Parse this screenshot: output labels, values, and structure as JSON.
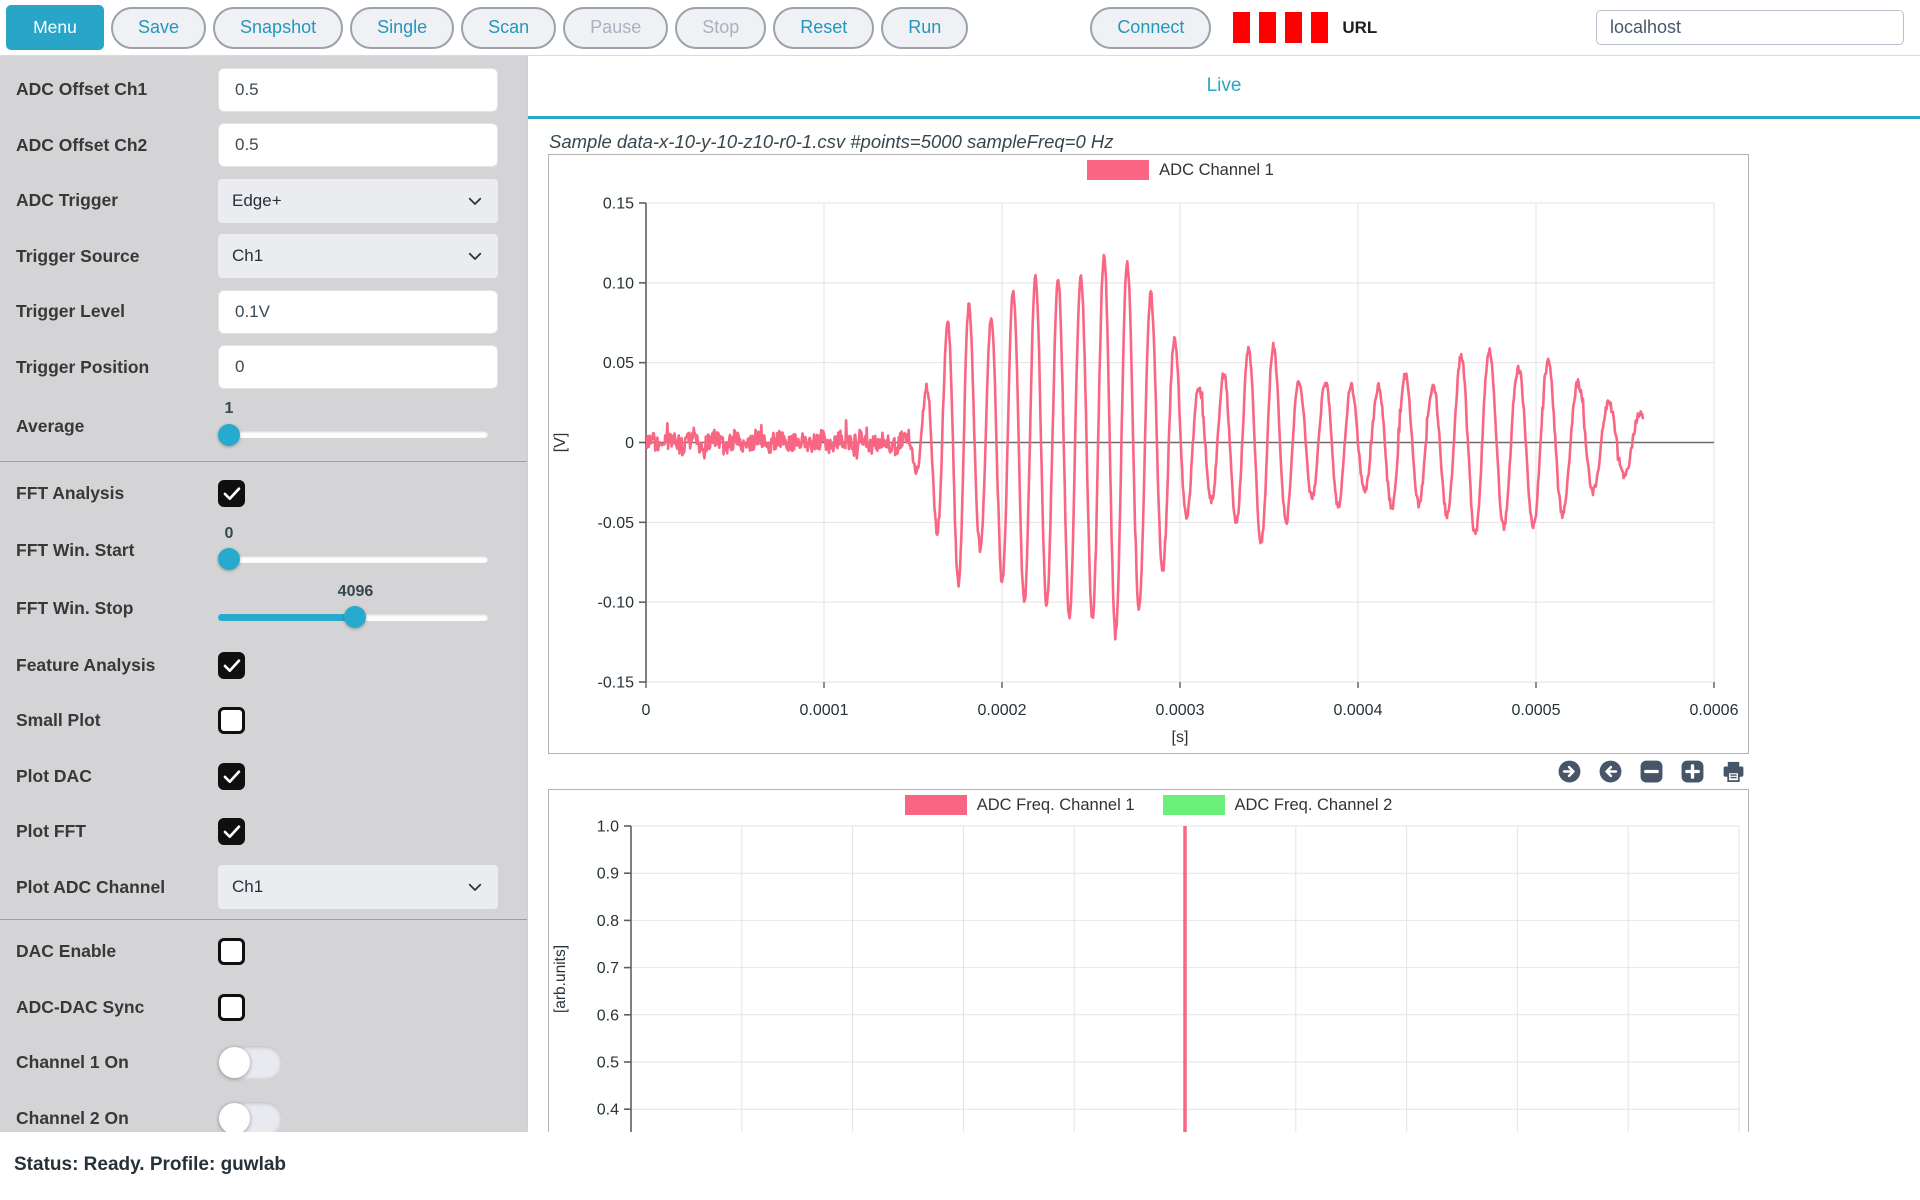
{
  "toolbar": {
    "menu_label": "Menu",
    "buttons": [
      {
        "label": "Save",
        "enabled": true
      },
      {
        "label": "Snapshot",
        "enabled": true
      },
      {
        "label": "Single",
        "enabled": true
      },
      {
        "label": "Scan",
        "enabled": true
      },
      {
        "label": "Pause",
        "enabled": false
      },
      {
        "label": "Stop",
        "enabled": false
      },
      {
        "label": "Reset",
        "enabled": true
      },
      {
        "label": "Run",
        "enabled": true
      }
    ],
    "connect_label": "Connect",
    "indicator_bars": 4,
    "indicator_color": "#FF0000",
    "url_label": "URL",
    "url_value": "localhost"
  },
  "sidebar": {
    "rows": [
      {
        "label": "ADC Offset Ch1",
        "type": "input",
        "value": "0.5"
      },
      {
        "label": "ADC Offset Ch2",
        "type": "input",
        "value": "0.5"
      },
      {
        "label": "ADC Trigger",
        "type": "select",
        "value": "Edge+"
      },
      {
        "label": "Trigger Source",
        "type": "select",
        "value": "Ch1"
      },
      {
        "label": "Trigger Level",
        "type": "input",
        "value": "0.1V"
      },
      {
        "label": "Trigger Position",
        "type": "input",
        "value": "0"
      },
      {
        "label": "Average",
        "type": "slider",
        "value": "1",
        "fraction": 0.0,
        "filled": false
      },
      {
        "label": "FFT Analysis",
        "type": "checkbox",
        "checked": true
      },
      {
        "label": "FFT Win. Start",
        "type": "slider",
        "value": "0",
        "fraction": 0.0,
        "filled": false
      },
      {
        "label": "FFT Win. Stop",
        "type": "slider",
        "value": "4096",
        "fraction": 0.51,
        "filled": true
      },
      {
        "label": "Feature Analysis",
        "type": "checkbox",
        "checked": true
      },
      {
        "label": "Small Plot",
        "type": "checkbox",
        "checked": false
      },
      {
        "label": "Plot DAC",
        "type": "checkbox",
        "checked": true
      },
      {
        "label": "Plot FFT",
        "type": "checkbox",
        "checked": true
      },
      {
        "label": "Plot ADC Channel",
        "type": "select",
        "value": "Ch1"
      },
      {
        "label": "DAC Enable",
        "type": "checkbox",
        "checked": false
      },
      {
        "label": "ADC-DAC Sync",
        "type": "checkbox",
        "checked": false
      },
      {
        "label": "Channel 1 On",
        "type": "toggle",
        "on": false
      },
      {
        "label": "Channel 2 On",
        "type": "toggle",
        "on": false
      }
    ]
  },
  "main": {
    "tab": "Live",
    "plot_title": "Sample data-x-10-y-10-z10-r0-1.csv #points=5000 sampleFreq=0 Hz",
    "chart_tools": [
      "pan-right",
      "pan-left",
      "zoom-out",
      "zoom-in",
      "print"
    ]
  },
  "status_bar": {
    "text": "Status: Ready. Profile: guwlab"
  },
  "colors": {
    "accent": "#2AA7C8",
    "channel1_pink": "#F96684",
    "channel2_green": "#69EF7A",
    "indicator_red": "#FF0000",
    "tool_icon_slate": "#475569"
  },
  "chart_data": [
    {
      "type": "line",
      "title": "ADC time signal",
      "legend": [
        {
          "label": "ADC Channel 1",
          "color": "#F96684"
        }
      ],
      "xlabel": "[s]",
      "ylabel": "[V]",
      "xlim": [
        0,
        0.0006
      ],
      "ylim": [
        -0.15,
        0.15
      ],
      "x_ticks": [
        "0",
        "0.0001",
        "0.0002",
        "0.0003",
        "0.0004",
        "0.0005",
        "0.0006"
      ],
      "y_ticks": [
        "0.15",
        "0.10",
        "0.05",
        "0",
        "-0.05",
        "-0.10",
        "-0.15"
      ],
      "grid": true,
      "signal": {
        "description": "noise floor until ~0.00015 s, then ultrasonic guided-wave burst peaking near 0.12 V, decaying echoes until trace end",
        "data_end_us": 560,
        "step_us": 0.4,
        "noise_amp_v": 0.006,
        "noise_amp_tail_v": 0.0025,
        "burst_start_us": 150,
        "carrier_freq_start_hz": 84000,
        "carrier_freq_end_hz": 56000,
        "envelope_keypoints_us_v": [
          [
            0,
            0.002
          ],
          [
            145,
            0.002
          ],
          [
            155,
            0.025
          ],
          [
            163,
            0.055
          ],
          [
            171,
            0.08
          ],
          [
            179,
            0.095
          ],
          [
            187,
            0.065
          ],
          [
            195,
            0.08
          ],
          [
            203,
            0.092
          ],
          [
            212,
            0.1
          ],
          [
            221,
            0.105
          ],
          [
            229,
            0.098
          ],
          [
            237,
            0.11
          ],
          [
            246,
            0.103
          ],
          [
            255,
            0.115
          ],
          [
            263,
            0.12
          ],
          [
            271,
            0.112
          ],
          [
            279,
            0.1
          ],
          [
            287,
            0.088
          ],
          [
            296,
            0.068
          ],
          [
            304,
            0.045
          ],
          [
            312,
            0.032
          ],
          [
            322,
            0.04
          ],
          [
            331,
            0.05
          ],
          [
            340,
            0.06
          ],
          [
            350,
            0.065
          ],
          [
            359,
            0.05
          ],
          [
            368,
            0.038
          ],
          [
            377,
            0.033
          ],
          [
            386,
            0.042
          ],
          [
            395,
            0.036
          ],
          [
            404,
            0.03
          ],
          [
            413,
            0.036
          ],
          [
            423,
            0.044
          ],
          [
            432,
            0.04
          ],
          [
            441,
            0.034
          ],
          [
            450,
            0.046
          ],
          [
            460,
            0.055
          ],
          [
            470,
            0.06
          ],
          [
            480,
            0.055
          ],
          [
            490,
            0.046
          ],
          [
            500,
            0.055
          ],
          [
            510,
            0.05
          ],
          [
            520,
            0.04
          ],
          [
            530,
            0.032
          ],
          [
            540,
            0.026
          ],
          [
            550,
            0.02
          ],
          [
            560,
            0.018
          ]
        ]
      }
    },
    {
      "type": "line",
      "title": "ADC FFT spectrum (bottom edge clipped by viewport)",
      "legend": [
        {
          "label": "ADC Freq. Channel 1",
          "color": "#F96684"
        },
        {
          "label": "ADC Freq. Channel 2",
          "color": "#69EF7A"
        }
      ],
      "ylabel": "[arb.units]",
      "y_ticks": [
        "1.0",
        "0.9",
        "0.8",
        "0.7",
        "0.6",
        "0.5",
        "0.4"
      ],
      "visible_ylim": [
        0.353,
        1.0
      ],
      "x_gridline_count": 11,
      "series": [
        {
          "name": "ADC Freq. Channel 1",
          "color": "#F96684",
          "peak": {
            "position_fraction_of_width": 0.5,
            "value": 1.0
          }
        },
        {
          "name": "ADC Freq. Channel 2",
          "color": "#69EF7A",
          "visible_in_range": false
        }
      ]
    }
  ]
}
